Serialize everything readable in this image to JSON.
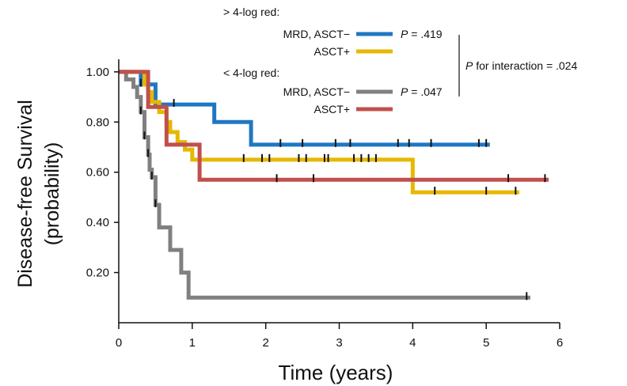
{
  "chart_data": {
    "type": "line",
    "step": true,
    "xlabel": "Time (years)",
    "ylabel_line1": "Disease-free Survival",
    "ylabel_line2": "(probability)",
    "xlim": [
      0,
      6
    ],
    "ylim": [
      0,
      1.05
    ],
    "x_ticks": [
      0,
      1,
      2,
      3,
      4,
      5,
      6
    ],
    "x_tick_labels": [
      "0",
      "1",
      "2",
      "3",
      "4",
      "5",
      "6"
    ],
    "y_ticks": [
      0.2,
      0.4,
      0.6,
      0.8,
      1.0
    ],
    "y_tick_labels": [
      "0.20",
      "0.40",
      "0.60",
      "0.80",
      "1.00"
    ],
    "grid": false,
    "legend": {
      "group1_label": "> 4-log red:",
      "group2_label": "< 4-log red:",
      "p_group1": ".419",
      "p_group2": ".047",
      "p_prefix": "P",
      "p_equals": " = ",
      "interaction_text": " for interaction = .024"
    },
    "series": [
      {
        "name": "MRD, ASCT−",
        "group": "> 4-log red:",
        "color": "#1f77c4",
        "steps": [
          [
            0,
            1.0
          ],
          [
            0.3,
            0.95
          ],
          [
            0.5,
            0.87
          ],
          [
            1.3,
            0.8
          ],
          [
            1.8,
            0.71
          ],
          [
            5.05,
            0.71
          ]
        ],
        "censor": [
          0.3,
          0.4,
          0.75,
          2.2,
          2.5,
          2.95,
          3.15,
          3.8,
          3.95,
          4.25,
          4.9,
          5.0
        ]
      },
      {
        "name": "ASCT+",
        "group": "> 4-log red:",
        "color": "#e6b800",
        "steps": [
          [
            0,
            1.0
          ],
          [
            0.35,
            0.95
          ],
          [
            0.4,
            0.92
          ],
          [
            0.45,
            0.88
          ],
          [
            0.55,
            0.84
          ],
          [
            0.65,
            0.8
          ],
          [
            0.7,
            0.76
          ],
          [
            0.8,
            0.72
          ],
          [
            0.9,
            0.69
          ],
          [
            1.0,
            0.65
          ],
          [
            4.0,
            0.52
          ],
          [
            5.45,
            0.52
          ]
        ],
        "censor": [
          1.7,
          1.95,
          2.05,
          2.45,
          2.55,
          2.8,
          2.85,
          3.2,
          3.3,
          3.4,
          3.5,
          4.3,
          5.0,
          5.4
        ]
      },
      {
        "name": "MRD, ASCT−",
        "group": "< 4-log red:",
        "color": "#808080",
        "steps": [
          [
            0,
            1.0
          ],
          [
            0.1,
            0.97
          ],
          [
            0.2,
            0.94
          ],
          [
            0.25,
            0.9
          ],
          [
            0.3,
            0.84
          ],
          [
            0.35,
            0.74
          ],
          [
            0.4,
            0.67
          ],
          [
            0.42,
            0.61
          ],
          [
            0.45,
            0.58
          ],
          [
            0.5,
            0.47
          ],
          [
            0.55,
            0.38
          ],
          [
            0.65,
            0.38
          ],
          [
            0.7,
            0.29
          ],
          [
            0.85,
            0.2
          ],
          [
            0.95,
            0.1
          ],
          [
            5.6,
            0.1
          ]
        ],
        "censor": [
          0.3,
          0.35,
          0.4,
          0.45,
          0.5,
          5.55
        ]
      },
      {
        "name": "ASCT+",
        "group": "< 4-log red:",
        "color": "#c0504d",
        "steps": [
          [
            0,
            1.0
          ],
          [
            0.4,
            0.86
          ],
          [
            0.65,
            0.71
          ],
          [
            1.1,
            0.57
          ],
          [
            5.85,
            0.57
          ]
        ],
        "censor": [
          2.15,
          2.65,
          5.3,
          5.8
        ]
      }
    ]
  }
}
